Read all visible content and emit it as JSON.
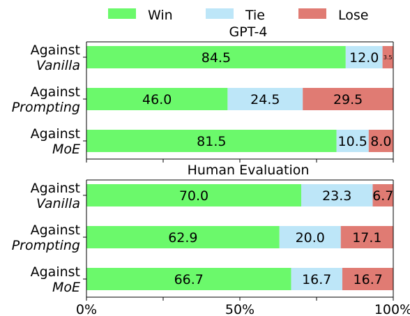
{
  "chart_data": {
    "type": "bar",
    "orientation": "horizontal",
    "stacked": true,
    "legend": {
      "placement": "top",
      "entries": [
        {
          "name": "Win",
          "color": "#6bf96b"
        },
        {
          "name": "Tie",
          "color": "#bde6f8"
        },
        {
          "name": "Lose",
          "color": "#e07b73"
        }
      ]
    },
    "xlim": [
      0,
      100
    ],
    "xticks": [
      "0%",
      "50%",
      "100%"
    ],
    "panels": [
      {
        "title": "GPT-4",
        "categories": [
          {
            "line1": "Against",
            "line2": "Vanilla"
          },
          {
            "line1": "Against",
            "line2": "Prompting"
          },
          {
            "line1": "Against",
            "line2": "MoE"
          }
        ],
        "series": [
          {
            "name": "Win",
            "values": [
              84.5,
              46.0,
              81.5
            ],
            "labels": [
              "84.5",
              "46.0",
              "81.5"
            ]
          },
          {
            "name": "Tie",
            "values": [
              12.0,
              24.5,
              10.5
            ],
            "labels": [
              "12.0",
              "24.5",
              "10.5"
            ]
          },
          {
            "name": "Lose",
            "values": [
              3.5,
              29.5,
              8.0
            ],
            "labels": [
              "3.5",
              "29.5",
              "8.0"
            ]
          }
        ]
      },
      {
        "title": "Human Evaluation",
        "categories": [
          {
            "line1": "Against",
            "line2": "Vanilla"
          },
          {
            "line1": "Against",
            "line2": "Prompting"
          },
          {
            "line1": "Against",
            "line2": "MoE"
          }
        ],
        "series": [
          {
            "name": "Win",
            "values": [
              70.0,
              62.9,
              66.7
            ],
            "labels": [
              "70.0",
              "62.9",
              "66.7"
            ]
          },
          {
            "name": "Tie",
            "values": [
              23.3,
              20.0,
              16.7
            ],
            "labels": [
              "23.3",
              "20.0",
              "16.7"
            ]
          },
          {
            "name": "Lose",
            "values": [
              6.7,
              17.1,
              16.7
            ],
            "labels": [
              "6.7",
              "17.1",
              "16.7"
            ]
          }
        ]
      }
    ]
  }
}
